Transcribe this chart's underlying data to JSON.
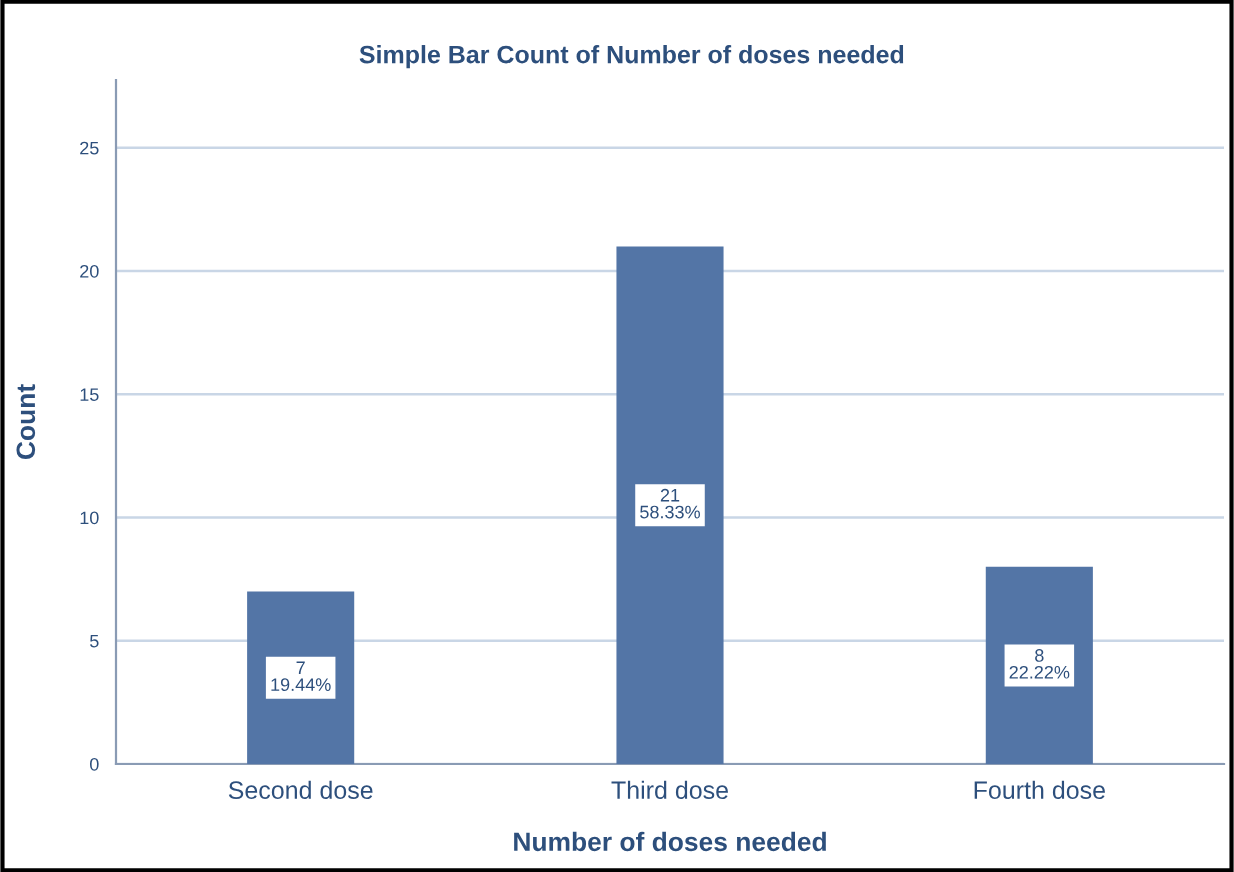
{
  "chart_data": {
    "type": "bar",
    "title": "Simple Bar Count of Number of doses needed",
    "xlabel": "Number of doses needed",
    "ylabel": "Count",
    "categories": [
      "Second dose",
      "Third dose",
      "Fourth dose"
    ],
    "values": [
      7,
      21,
      8
    ],
    "value_labels": [
      "7\n19.44%",
      "21\n58.33%",
      "8\n22.22%"
    ],
    "color": "#5375a6",
    "ylim": [
      0,
      27.75
    ],
    "yticks": [
      0,
      5,
      10,
      15,
      20,
      25
    ],
    "grid": "y"
  }
}
